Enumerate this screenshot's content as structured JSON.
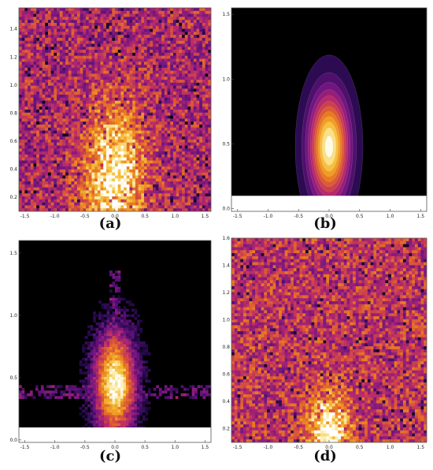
{
  "chart_data": [
    {
      "type": "heatmap",
      "panel": "a",
      "caption": "(a)",
      "style": "noisy",
      "xlim": [
        -1.6,
        1.6
      ],
      "ylim": [
        0.1,
        1.55
      ],
      "xticks": [
        -1.5,
        -1.0,
        -0.5,
        0.0,
        0.5,
        1.0,
        1.5
      ],
      "xtick_labels": [
        "-1.5",
        "-1.0",
        "-0.5",
        "0.0",
        "0.5",
        "1.0",
        "1.5"
      ],
      "yticks": [
        0.2,
        0.4,
        0.6,
        0.8,
        1.0,
        1.2,
        1.4
      ],
      "ytick_labels": [
        "0.2",
        "0.4",
        "0.6",
        "0.8",
        "1.0",
        "1.2",
        "1.4"
      ],
      "hotspot": {
        "x": 0.0,
        "y": 0.35,
        "sx": 0.35,
        "sy": 0.35
      },
      "background_level": 0.45
    },
    {
      "type": "heatmap",
      "panel": "b",
      "caption": "(b)",
      "style": "contour",
      "xlim": [
        -1.6,
        1.6
      ],
      "ylim": [
        -0.02,
        1.55
      ],
      "data_ylim": [
        0.1,
        1.55
      ],
      "xticks": [
        -1.5,
        -1.0,
        -0.5,
        0.0,
        0.5,
        1.0,
        1.5
      ],
      "xtick_labels": [
        "-1.5",
        "-1.0",
        "-0.5",
        "0.0",
        "0.5",
        "1.0",
        "1.5"
      ],
      "yticks": [
        0.0,
        0.5,
        1.0,
        1.5
      ],
      "ytick_labels": [
        "0.0",
        "0.5",
        "1.0",
        "1.5"
      ],
      "hotspot": {
        "x": 0.0,
        "y": 0.48,
        "sx": 0.22,
        "sy": 0.28
      },
      "levels": 12
    },
    {
      "type": "heatmap",
      "panel": "c",
      "caption": "(c)",
      "style": "speckle",
      "xlim": [
        -1.6,
        1.6
      ],
      "ylim": [
        -0.02,
        1.6
      ],
      "data_ylim": [
        0.1,
        1.55
      ],
      "xticks": [
        -1.5,
        -1.0,
        -0.5,
        0.0,
        0.5,
        1.0,
        1.5
      ],
      "xtick_labels": [
        "-1.5",
        "-1.0",
        "-0.5",
        "0.0",
        "0.5",
        "1.0",
        "1.5"
      ],
      "yticks": [
        0.0,
        0.5,
        1.0,
        1.5
      ],
      "ytick_labels": [
        "0.0",
        "0.5",
        "1.0",
        "1.5"
      ],
      "hotspot": {
        "x": 0.0,
        "y": 0.45,
        "sx": 0.25,
        "sy": 0.3
      },
      "band": {
        "y": 0.38,
        "half_width": 0.05
      },
      "column": {
        "x": 0.0,
        "half_width": 0.08
      }
    },
    {
      "type": "heatmap",
      "panel": "d",
      "caption": "(d)",
      "style": "noisy",
      "xlim": [
        -1.6,
        1.6
      ],
      "ylim": [
        0.1,
        1.6
      ],
      "xticks": [
        -1.5,
        -1.0,
        -0.5,
        0.0,
        0.5,
        1.0,
        1.5
      ],
      "xtick_labels": [
        "-1.5",
        "-1.0",
        "-0.5",
        "0.0",
        "0.5",
        "1.0",
        "1.5"
      ],
      "yticks": [
        0.2,
        0.4,
        0.6,
        0.8,
        1.0,
        1.2,
        1.4,
        1.6
      ],
      "ytick_labels": [
        "0.2",
        "0.4",
        "0.6",
        "0.8",
        "1.0",
        "1.2",
        "1.4",
        "1.6"
      ],
      "hotspot": {
        "x": 0.0,
        "y": 0.2,
        "sx": 0.22,
        "sy": 0.18
      },
      "background_level": 0.5
    }
  ]
}
